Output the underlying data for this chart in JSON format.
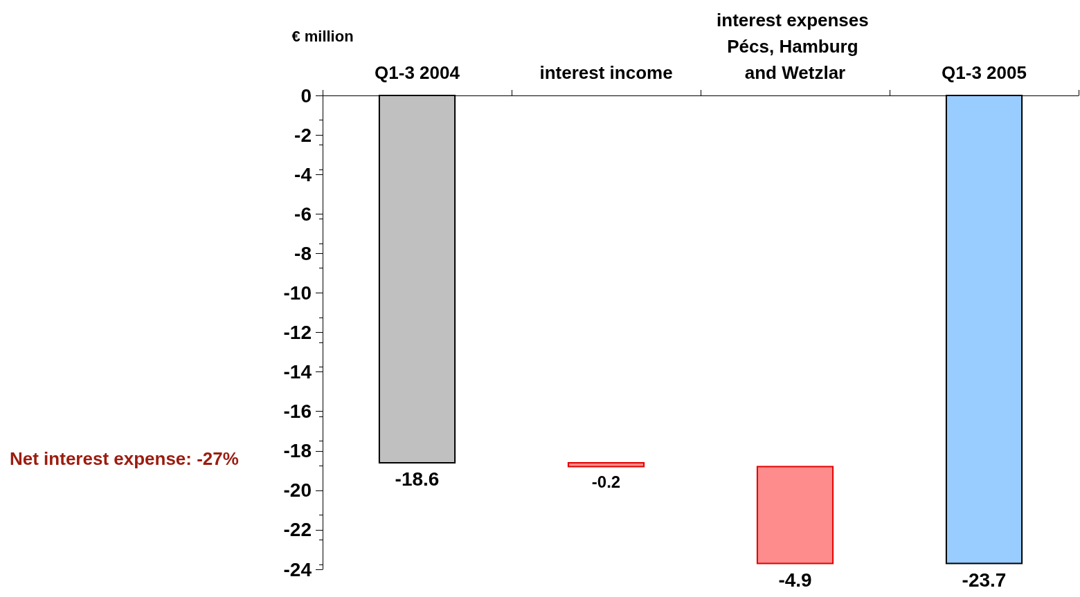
{
  "chart_data": {
    "type": "bar",
    "ylabel": "€ million",
    "categories": [
      "Q1-3 2004",
      "interest income",
      "interest expenses Pécs, Hamburg and Wetzlar",
      "Q1-3 2005"
    ],
    "values": [
      -18.6,
      -0.2,
      -4.9,
      -23.7
    ],
    "base": [
      0,
      -18.6,
      -18.8,
      0
    ],
    "colors": [
      "#c0c0c0",
      "#ff8c8c",
      "#ff8c8c",
      "#99ccff"
    ],
    "ylim": [
      -24,
      0
    ],
    "yticks": [
      0,
      -2,
      -4,
      -6,
      -8,
      -10,
      -12,
      -14,
      -16,
      -18,
      -20,
      -22,
      -24
    ],
    "grid": false,
    "data_labels": true,
    "annotations": [
      "Net interest expense: -27%"
    ]
  }
}
